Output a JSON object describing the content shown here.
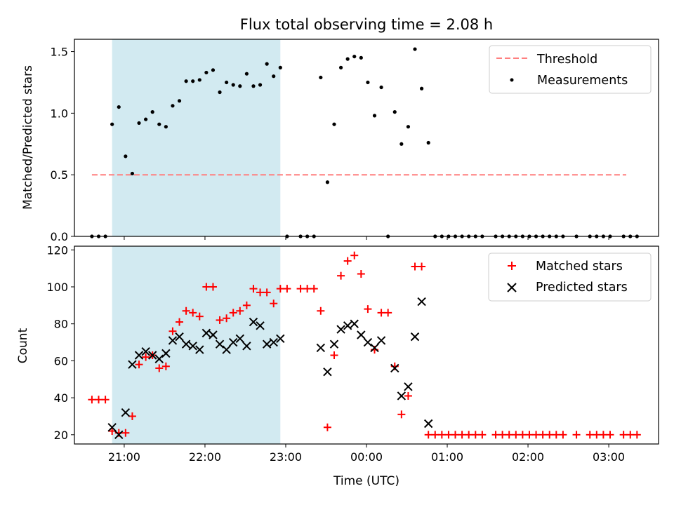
{
  "chart_data": [
    {
      "type": "scatter",
      "title": "Flux total observing time = 2.08 h",
      "ylabel": "Matched/Predicted stars",
      "xlabel": "",
      "xlim": [
        "2024-01-01T20:23",
        "2024-01-02T03:37"
      ],
      "ylim": [
        0,
        1.6
      ],
      "y_ticks": [
        0.0,
        0.5,
        1.0,
        1.5
      ],
      "y_tick_labels": [
        "0.0",
        "0.5",
        "1.0",
        "1.5"
      ],
      "shaded_interval": {
        "x_start": "2024-01-01T20:51",
        "x_end": "2024-01-01T22:56",
        "color": "#add8e6"
      },
      "legend_position": "upper right",
      "series": [
        {
          "name": "Threshold",
          "style": "dashed line",
          "color": "#ff7f7f",
          "points": [
            [
              "2024-01-01T20:36",
              0.5
            ],
            [
              "2024-01-02T03:13",
              0.5
            ]
          ]
        },
        {
          "name": "Measurements",
          "style": "dots",
          "color": "#000000",
          "points": [
            [
              "2024-01-01T20:36",
              0
            ],
            [
              "2024-01-01T20:41",
              0
            ],
            [
              "2024-01-01T20:46",
              0
            ],
            [
              "2024-01-01T20:51",
              0.91
            ],
            [
              "2024-01-01T20:56",
              1.05
            ],
            [
              "2024-01-01T21:01",
              0.65
            ],
            [
              "2024-01-01T21:06",
              0.51
            ],
            [
              "2024-01-01T21:11",
              0.92
            ],
            [
              "2024-01-01T21:16",
              0.95
            ],
            [
              "2024-01-01T21:21",
              1.01
            ],
            [
              "2024-01-01T21:26",
              0.91
            ],
            [
              "2024-01-01T21:31",
              0.89
            ],
            [
              "2024-01-01T21:36",
              1.06
            ],
            [
              "2024-01-01T21:41",
              1.1
            ],
            [
              "2024-01-01T21:46",
              1.26
            ],
            [
              "2024-01-01T21:51",
              1.26
            ],
            [
              "2024-01-01T21:56",
              1.27
            ],
            [
              "2024-01-01T22:01",
              1.33
            ],
            [
              "2024-01-01T22:06",
              1.35
            ],
            [
              "2024-01-01T22:11",
              1.17
            ],
            [
              "2024-01-01T22:16",
              1.25
            ],
            [
              "2024-01-01T22:21",
              1.23
            ],
            [
              "2024-01-01T22:26",
              1.22
            ],
            [
              "2024-01-01T22:31",
              1.32
            ],
            [
              "2024-01-01T22:36",
              1.22
            ],
            [
              "2024-01-01T22:41",
              1.23
            ],
            [
              "2024-01-01T22:46",
              1.4
            ],
            [
              "2024-01-01T22:51",
              1.3
            ],
            [
              "2024-01-01T22:56",
              1.37
            ],
            [
              "2024-01-01T23:01",
              0
            ],
            [
              "2024-01-01T23:11",
              0
            ],
            [
              "2024-01-01T23:16",
              0
            ],
            [
              "2024-01-01T23:21",
              0
            ],
            [
              "2024-01-01T23:26",
              1.29
            ],
            [
              "2024-01-01T23:31",
              0.44
            ],
            [
              "2024-01-01T23:36",
              0.91
            ],
            [
              "2024-01-01T23:41",
              1.37
            ],
            [
              "2024-01-01T23:46",
              1.44
            ],
            [
              "2024-01-01T23:51",
              1.46
            ],
            [
              "2024-01-01T23:56",
              1.45
            ],
            [
              "2024-01-02T00:01",
              1.25
            ],
            [
              "2024-01-02T00:06",
              0.98
            ],
            [
              "2024-01-02T00:11",
              1.21
            ],
            [
              "2024-01-02T00:16",
              0
            ],
            [
              "2024-01-02T00:21",
              1.01
            ],
            [
              "2024-01-02T00:26",
              0.75
            ],
            [
              "2024-01-02T00:31",
              0.89
            ],
            [
              "2024-01-02T00:36",
              1.52
            ],
            [
              "2024-01-02T00:41",
              1.2
            ],
            [
              "2024-01-02T00:46",
              0.76
            ],
            [
              "2024-01-02T00:51",
              0
            ],
            [
              "2024-01-02T00:56",
              0
            ],
            [
              "2024-01-02T01:01",
              0
            ],
            [
              "2024-01-02T01:06",
              0
            ],
            [
              "2024-01-02T01:11",
              0
            ],
            [
              "2024-01-02T01:16",
              0
            ],
            [
              "2024-01-02T01:21",
              0
            ],
            [
              "2024-01-02T01:26",
              0
            ],
            [
              "2024-01-02T01:36",
              0
            ],
            [
              "2024-01-02T01:41",
              0
            ],
            [
              "2024-01-02T01:46",
              0
            ],
            [
              "2024-01-02T01:51",
              0
            ],
            [
              "2024-01-02T01:56",
              0
            ],
            [
              "2024-01-02T02:01",
              0
            ],
            [
              "2024-01-02T02:06",
              0
            ],
            [
              "2024-01-02T02:11",
              0
            ],
            [
              "2024-01-02T02:16",
              0
            ],
            [
              "2024-01-02T02:21",
              0
            ],
            [
              "2024-01-02T02:26",
              0
            ],
            [
              "2024-01-02T02:36",
              0
            ],
            [
              "2024-01-02T02:46",
              0
            ],
            [
              "2024-01-02T02:51",
              0
            ],
            [
              "2024-01-02T02:56",
              0
            ],
            [
              "2024-01-02T03:01",
              0
            ],
            [
              "2024-01-02T03:11",
              0
            ],
            [
              "2024-01-02T03:16",
              0
            ],
            [
              "2024-01-02T03:21",
              0
            ]
          ]
        }
      ]
    },
    {
      "type": "scatter",
      "title": "",
      "xlabel": "Time (UTC)",
      "ylabel": "Count",
      "xlim": [
        "2024-01-01T20:23",
        "2024-01-02T03:37"
      ],
      "ylim": [
        15,
        122
      ],
      "y_ticks": [
        20,
        40,
        60,
        80,
        100,
        120
      ],
      "y_tick_labels": [
        "20",
        "40",
        "60",
        "80",
        "100",
        "120"
      ],
      "x_ticks": [
        "2024-01-01T21:00",
        "2024-01-01T22:00",
        "2024-01-01T23:00",
        "2024-01-02T00:00",
        "2024-01-02T01:00",
        "2024-01-02T02:00",
        "2024-01-02T03:00"
      ],
      "x_tick_labels": [
        "21:00",
        "22:00",
        "23:00",
        "00:00",
        "01:00",
        "02:00",
        "03:00"
      ],
      "shaded_interval": {
        "x_start": "2024-01-01T20:51",
        "x_end": "2024-01-01T22:56",
        "color": "#add8e6"
      },
      "legend_position": "upper right",
      "series": [
        {
          "name": "Matched stars",
          "style": "plus markers",
          "color": "#ff0000",
          "points": [
            [
              "2024-01-01T20:36",
              39
            ],
            [
              "2024-01-01T20:41",
              39
            ],
            [
              "2024-01-01T20:46",
              39
            ],
            [
              "2024-01-01T20:51",
              22
            ],
            [
              "2024-01-01T20:56",
              21
            ],
            [
              "2024-01-01T21:01",
              21
            ],
            [
              "2024-01-01T21:06",
              30
            ],
            [
              "2024-01-01T21:11",
              58
            ],
            [
              "2024-01-01T21:16",
              62
            ],
            [
              "2024-01-01T21:21",
              63
            ],
            [
              "2024-01-01T21:26",
              56
            ],
            [
              "2024-01-01T21:31",
              57
            ],
            [
              "2024-01-01T21:36",
              76
            ],
            [
              "2024-01-01T21:41",
              81
            ],
            [
              "2024-01-01T21:46",
              87
            ],
            [
              "2024-01-01T21:51",
              86
            ],
            [
              "2024-01-01T21:56",
              84
            ],
            [
              "2024-01-01T22:01",
              100
            ],
            [
              "2024-01-01T22:06",
              100
            ],
            [
              "2024-01-01T22:11",
              82
            ],
            [
              "2024-01-01T22:16",
              83
            ],
            [
              "2024-01-01T22:21",
              86
            ],
            [
              "2024-01-01T22:26",
              87
            ],
            [
              "2024-01-01T22:31",
              90
            ],
            [
              "2024-01-01T22:36",
              99
            ],
            [
              "2024-01-01T22:41",
              97
            ],
            [
              "2024-01-01T22:46",
              97
            ],
            [
              "2024-01-01T22:51",
              91
            ],
            [
              "2024-01-01T22:56",
              99
            ],
            [
              "2024-01-01T23:01",
              99
            ],
            [
              "2024-01-01T23:11",
              99
            ],
            [
              "2024-01-01T23:16",
              99
            ],
            [
              "2024-01-01T23:21",
              99
            ],
            [
              "2024-01-01T23:26",
              87
            ],
            [
              "2024-01-01T23:31",
              24
            ],
            [
              "2024-01-01T23:36",
              63
            ],
            [
              "2024-01-01T23:41",
              106
            ],
            [
              "2024-01-01T23:46",
              114
            ],
            [
              "2024-01-01T23:51",
              117
            ],
            [
              "2024-01-01T23:56",
              107
            ],
            [
              "2024-01-02T00:01",
              88
            ],
            [
              "2024-01-02T00:06",
              66
            ],
            [
              "2024-01-02T00:11",
              86
            ],
            [
              "2024-01-02T00:16",
              86
            ],
            [
              "2024-01-02T00:21",
              57
            ],
            [
              "2024-01-02T00:26",
              31
            ],
            [
              "2024-01-02T00:31",
              41
            ],
            [
              "2024-01-02T00:36",
              111
            ],
            [
              "2024-01-02T00:41",
              111
            ],
            [
              "2024-01-02T00:46",
              20
            ],
            [
              "2024-01-02T00:51",
              20
            ],
            [
              "2024-01-02T00:56",
              20
            ],
            [
              "2024-01-02T01:01",
              20
            ],
            [
              "2024-01-02T01:06",
              20
            ],
            [
              "2024-01-02T01:11",
              20
            ],
            [
              "2024-01-02T01:16",
              20
            ],
            [
              "2024-01-02T01:21",
              20
            ],
            [
              "2024-01-02T01:26",
              20
            ],
            [
              "2024-01-02T01:36",
              20
            ],
            [
              "2024-01-02T01:41",
              20
            ],
            [
              "2024-01-02T01:46",
              20
            ],
            [
              "2024-01-02T01:51",
              20
            ],
            [
              "2024-01-02T01:56",
              20
            ],
            [
              "2024-01-02T02:01",
              20
            ],
            [
              "2024-01-02T02:06",
              20
            ],
            [
              "2024-01-02T02:11",
              20
            ],
            [
              "2024-01-02T02:16",
              20
            ],
            [
              "2024-01-02T02:21",
              20
            ],
            [
              "2024-01-02T02:26",
              20
            ],
            [
              "2024-01-02T02:36",
              20
            ],
            [
              "2024-01-02T02:46",
              20
            ],
            [
              "2024-01-02T02:51",
              20
            ],
            [
              "2024-01-02T02:56",
              20
            ],
            [
              "2024-01-02T03:01",
              20
            ],
            [
              "2024-01-02T03:11",
              20
            ],
            [
              "2024-01-02T03:16",
              20
            ],
            [
              "2024-01-02T03:21",
              20
            ]
          ]
        },
        {
          "name": "Predicted stars",
          "style": "x markers",
          "color": "#000000",
          "points": [
            [
              "2024-01-01T20:51",
              24
            ],
            [
              "2024-01-01T20:56",
              20
            ],
            [
              "2024-01-01T21:01",
              32
            ],
            [
              "2024-01-01T21:06",
              58
            ],
            [
              "2024-01-01T21:11",
              63
            ],
            [
              "2024-01-01T21:16",
              65
            ],
            [
              "2024-01-01T21:21",
              63
            ],
            [
              "2024-01-01T21:26",
              61
            ],
            [
              "2024-01-01T21:31",
              64
            ],
            [
              "2024-01-01T21:36",
              71
            ],
            [
              "2024-01-01T21:41",
              73
            ],
            [
              "2024-01-01T21:46",
              69
            ],
            [
              "2024-01-01T21:51",
              68
            ],
            [
              "2024-01-01T21:56",
              66
            ],
            [
              "2024-01-01T22:01",
              75
            ],
            [
              "2024-01-01T22:06",
              74
            ],
            [
              "2024-01-01T22:11",
              69
            ],
            [
              "2024-01-01T22:16",
              66
            ],
            [
              "2024-01-01T22:21",
              70
            ],
            [
              "2024-01-01T22:26",
              72
            ],
            [
              "2024-01-01T22:31",
              68
            ],
            [
              "2024-01-01T22:36",
              81
            ],
            [
              "2024-01-01T22:41",
              79
            ],
            [
              "2024-01-01T22:46",
              69
            ],
            [
              "2024-01-01T22:51",
              70
            ],
            [
              "2024-01-01T22:56",
              72
            ],
            [
              "2024-01-01T23:26",
              67
            ],
            [
              "2024-01-01T23:31",
              54
            ],
            [
              "2024-01-01T23:36",
              69
            ],
            [
              "2024-01-01T23:41",
              77
            ],
            [
              "2024-01-01T23:46",
              79
            ],
            [
              "2024-01-01T23:51",
              80
            ],
            [
              "2024-01-01T23:56",
              74
            ],
            [
              "2024-01-02T00:01",
              70
            ],
            [
              "2024-01-02T00:06",
              67
            ],
            [
              "2024-01-02T00:11",
              71
            ],
            [
              "2024-01-02T00:21",
              56
            ],
            [
              "2024-01-02T00:26",
              41
            ],
            [
              "2024-01-02T00:31",
              46
            ],
            [
              "2024-01-02T00:36",
              73
            ],
            [
              "2024-01-02T00:41",
              92
            ],
            [
              "2024-01-02T00:46",
              26
            ]
          ]
        }
      ]
    }
  ]
}
